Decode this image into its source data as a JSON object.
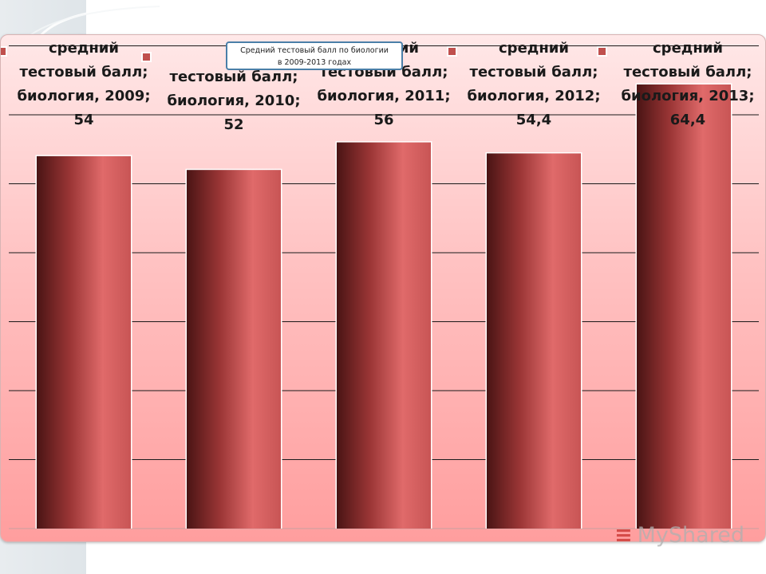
{
  "chart_data": {
    "type": "bar",
    "title_lines": [
      "Средний тестовый балл по биологии",
      "в 2009-2013 годах"
    ],
    "categories": [
      "биология, 2009",
      "биология, 2010",
      "биология, 2011",
      "биология, 2012",
      "биология, 2013"
    ],
    "series": [
      {
        "name": "средний тестовый балл",
        "values": [
          54,
          52,
          56,
          54.4,
          64.4
        ]
      }
    ],
    "data_labels": [
      [
        "средний",
        "тестовый балл;",
        "биология, 2009;",
        "54"
      ],
      [
        "тестовый балл;",
        "биология, 2010;",
        "52"
      ],
      [
        "средний",
        "тестовый балл;",
        "биология, 2011;",
        "56"
      ],
      [
        "средний",
        "тестовый балл;",
        "биология, 2012;",
        "54,4"
      ],
      [
        "средний",
        "тестовый балл;",
        "биология, 2013;",
        "64,4"
      ]
    ],
    "ylim": [
      0,
      70
    ],
    "grid": true,
    "legend": "none",
    "colors": {
      "bar_light": "#e06a6a",
      "bar_dark": "#4a1414",
      "marker": "#c0504d",
      "grid": "#1a1a1a",
      "title_border": "#4a7fa8"
    }
  },
  "watermark": {
    "text": "MyShared"
  }
}
